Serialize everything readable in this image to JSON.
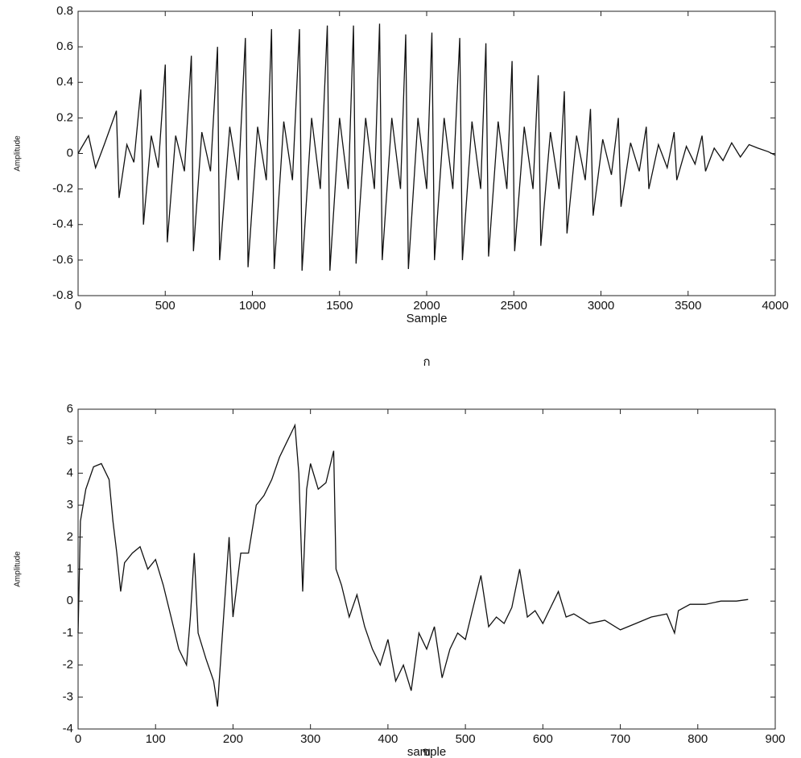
{
  "chart_data": [
    {
      "type": "line",
      "ylabel": "Amplitude",
      "xlabel": "Sample",
      "caption": "ก",
      "xlim": [
        0,
        4000
      ],
      "xticks": [
        0,
        500,
        1000,
        1500,
        2000,
        2500,
        3000,
        3500,
        4000
      ],
      "ylim": [
        -0.8,
        0.8
      ],
      "yticks": [
        -0.8,
        -0.6,
        -0.4,
        -0.2,
        0,
        0.2,
        0.4,
        0.6,
        0.8
      ],
      "x": [
        0,
        60,
        100,
        150,
        220,
        235,
        280,
        320,
        360,
        375,
        420,
        460,
        500,
        512,
        560,
        610,
        650,
        662,
        710,
        760,
        800,
        812,
        870,
        920,
        960,
        975,
        1030,
        1080,
        1110,
        1125,
        1180,
        1230,
        1270,
        1285,
        1340,
        1390,
        1430,
        1445,
        1500,
        1550,
        1580,
        1595,
        1650,
        1700,
        1730,
        1745,
        1800,
        1850,
        1880,
        1895,
        1950,
        2000,
        2030,
        2045,
        2100,
        2150,
        2190,
        2205,
        2260,
        2310,
        2340,
        2355,
        2410,
        2460,
        2490,
        2505,
        2560,
        2610,
        2640,
        2655,
        2710,
        2760,
        2790,
        2805,
        2860,
        2910,
        2940,
        2955,
        3010,
        3060,
        3100,
        3115,
        3170,
        3220,
        3260,
        3275,
        3330,
        3380,
        3420,
        3435,
        3490,
        3540,
        3580,
        3600,
        3650,
        3700,
        3750,
        3800,
        3850,
        3900,
        3960,
        4000
      ],
      "series": [
        {
          "color": "#111111",
          "values": [
            0,
            0.1,
            -0.08,
            0.05,
            0.24,
            -0.25,
            0.05,
            -0.05,
            0.36,
            -0.4,
            0.1,
            -0.08,
            0.5,
            -0.5,
            0.1,
            -0.1,
            0.55,
            -0.55,
            0.12,
            -0.1,
            0.6,
            -0.6,
            0.15,
            -0.15,
            0.65,
            -0.64,
            0.15,
            -0.15,
            0.7,
            -0.65,
            0.18,
            -0.15,
            0.7,
            -0.66,
            0.2,
            -0.2,
            0.72,
            -0.66,
            0.2,
            -0.2,
            0.72,
            -0.62,
            0.2,
            -0.2,
            0.73,
            -0.6,
            0.2,
            -0.2,
            0.67,
            -0.65,
            0.2,
            -0.2,
            0.68,
            -0.6,
            0.2,
            -0.2,
            0.65,
            -0.6,
            0.18,
            -0.2,
            0.62,
            -0.58,
            0.18,
            -0.2,
            0.52,
            -0.55,
            0.15,
            -0.2,
            0.44,
            -0.52,
            0.12,
            -0.2,
            0.35,
            -0.45,
            0.1,
            -0.15,
            0.25,
            -0.35,
            0.08,
            -0.12,
            0.2,
            -0.3,
            0.06,
            -0.1,
            0.15,
            -0.2,
            0.05,
            -0.08,
            0.12,
            -0.15,
            0.04,
            -0.06,
            0.1,
            -0.1,
            0.03,
            -0.04,
            0.06,
            -0.02,
            0.05,
            0.03,
            0.01,
            -0.01
          ]
        }
      ]
    },
    {
      "type": "line",
      "ylabel": "Amplitude",
      "xlabel": "sample",
      "caption": "ข",
      "xlim": [
        0,
        900
      ],
      "xticks": [
        0,
        100,
        200,
        300,
        400,
        500,
        600,
        700,
        800,
        900
      ],
      "ylim": [
        -4,
        6
      ],
      "yticks": [
        -4,
        -3,
        -2,
        -1,
        0,
        1,
        2,
        3,
        4,
        5,
        6
      ],
      "x": [
        0,
        3,
        10,
        20,
        30,
        40,
        45,
        50,
        55,
        60,
        70,
        80,
        90,
        100,
        110,
        120,
        130,
        140,
        145,
        150,
        155,
        165,
        175,
        180,
        185,
        195,
        200,
        210,
        220,
        230,
        240,
        250,
        260,
        270,
        280,
        285,
        290,
        295,
        300,
        310,
        320,
        330,
        333,
        340,
        350,
        360,
        370,
        380,
        390,
        400,
        410,
        420,
        430,
        440,
        450,
        460,
        470,
        480,
        490,
        500,
        510,
        520,
        530,
        540,
        550,
        560,
        570,
        580,
        590,
        600,
        610,
        620,
        630,
        640,
        660,
        680,
        700,
        720,
        740,
        760,
        770,
        775,
        790,
        810,
        830,
        850,
        865
      ],
      "series": [
        {
          "color": "#111111",
          "values": [
            -1,
            2.5,
            3.5,
            4.2,
            4.3,
            3.8,
            2.5,
            1.5,
            0.3,
            1.2,
            1.5,
            1.7,
            1.0,
            1.3,
            0.5,
            -0.5,
            -1.5,
            -2,
            -0.5,
            1.5,
            -1,
            -1.8,
            -2.5,
            -3.3,
            -1.5,
            2,
            -0.5,
            1.5,
            1.5,
            3,
            3.3,
            3.8,
            4.5,
            5,
            5.5,
            4,
            0.3,
            3.5,
            4.3,
            3.5,
            3.7,
            4.7,
            1.0,
            0.5,
            -0.5,
            0.2,
            -0.8,
            -1.5,
            -2,
            -1.2,
            -2.5,
            -2,
            -2.8,
            -1.0,
            -1.5,
            -0.8,
            -2.4,
            -1.5,
            -1.0,
            -1.2,
            -0.2,
            0.8,
            -0.8,
            -0.5,
            -0.7,
            -0.2,
            1.0,
            -0.5,
            -0.3,
            -0.7,
            -0.2,
            0.3,
            -0.5,
            -0.4,
            -0.7,
            -0.6,
            -0.9,
            -0.7,
            -0.5,
            -0.4,
            -1.0,
            -0.3,
            -0.1,
            -0.1,
            0,
            0,
            0.05
          ]
        }
      ]
    }
  ]
}
